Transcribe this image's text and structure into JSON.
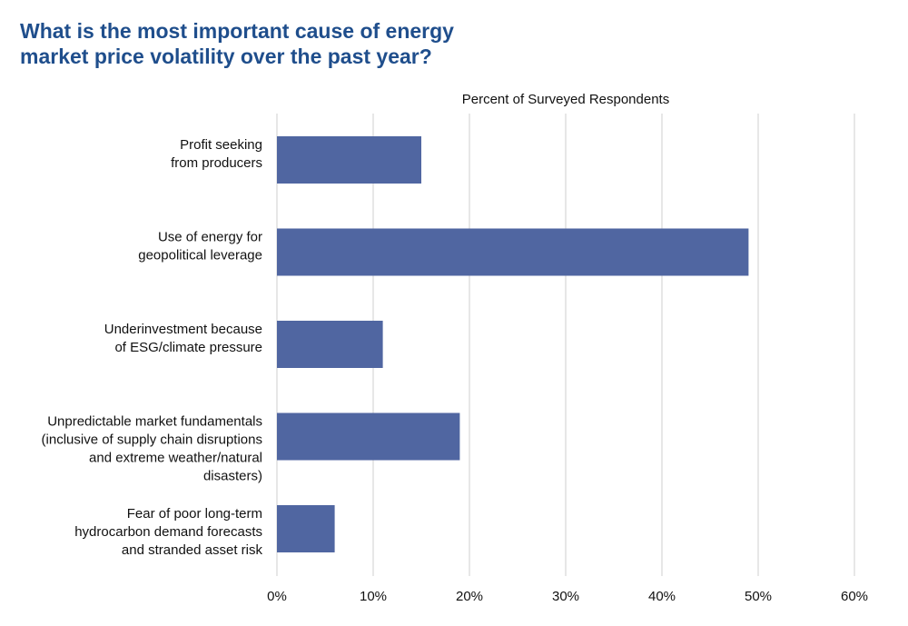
{
  "title_lines": [
    "What is the most important cause of energy",
    "market price volatility over the past year?"
  ],
  "chart_data": {
    "type": "bar",
    "orientation": "horizontal",
    "title": "What is the most important cause of energy market price volatility over the past year?",
    "xlabel": "Percent of Surveyed Respondents",
    "ylabel": "",
    "xlim": [
      0,
      60
    ],
    "ticks": [
      "0%",
      "10%",
      "20%",
      "30%",
      "40%",
      "50%",
      "60%"
    ],
    "grid": true,
    "bar_color": "#5066a1",
    "categories": [
      [
        "Profit seeking",
        "from producers"
      ],
      [
        "Use of energy for",
        "geopolitical leverage"
      ],
      [
        "Underinvestment because",
        "of ESG/climate pressure"
      ],
      [
        "Unpredictable market fundamentals",
        "(inclusive of supply chain disruptions",
        "and extreme weather/natural",
        "disasters)"
      ],
      [
        "Fear of poor long-term",
        "hydrocarbon demand forecasts",
        "and stranded asset risk"
      ]
    ],
    "values": [
      15,
      49,
      11,
      19,
      6
    ]
  }
}
